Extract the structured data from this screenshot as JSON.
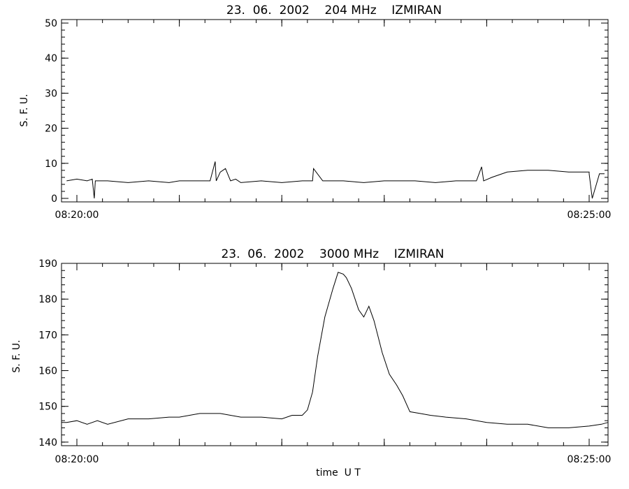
{
  "chart_data": [
    {
      "type": "line",
      "title": "23.  06.  2002    204 MHz    IZMIRAN",
      "xlabel": "",
      "ylabel": "S. F. U.",
      "x_start": "08:20:00",
      "x_end": "08:25:00",
      "x_tick_labels": [
        "08:20:00",
        "08:25:00"
      ],
      "ylim": [
        -1,
        51
      ],
      "yticks": [
        0,
        10,
        20,
        30,
        40,
        50
      ],
      "x_unit": "minutes after 08:20:00",
      "series": [
        {
          "x": [
            -0.1,
            0.0,
            0.1,
            0.15,
            0.17,
            0.18,
            0.3,
            0.5,
            0.7,
            0.9,
            1.0,
            1.1,
            1.2,
            1.3,
            1.35,
            1.36,
            1.4,
            1.45,
            1.5,
            1.55,
            1.6,
            1.8,
            2.0,
            2.2,
            2.3,
            2.31,
            2.4,
            2.6,
            2.8,
            3.0,
            3.2,
            3.3,
            3.5,
            3.7,
            3.9,
            3.95,
            3.97,
            4.05,
            4.2,
            4.4,
            4.6,
            4.8,
            5.0,
            5.0,
            5.03,
            5.1,
            5.15
          ],
          "y": [
            5,
            5.5,
            5,
            5.5,
            0,
            5,
            5,
            4.5,
            5,
            4.5,
            5,
            5,
            5,
            5,
            10.5,
            5,
            7.5,
            8.5,
            5,
            5.5,
            4.5,
            5,
            4.5,
            5,
            5,
            8.5,
            5,
            5,
            4.5,
            5,
            5,
            5,
            4.5,
            5,
            5,
            9,
            5,
            6,
            7.5,
            8,
            8,
            7.5,
            7.5,
            7,
            0,
            7,
            7
          ]
        }
      ]
    },
    {
      "type": "line",
      "title": "23.  06.  2002    3000 MHz    IZMIRAN",
      "xlabel": "time  U T",
      "ylabel": "S. F. U.",
      "x_start": "08:20:00",
      "x_end": "08:25:00",
      "x_tick_labels": [
        "08:20:00",
        "08:25:00"
      ],
      "ylim": [
        139,
        190
      ],
      "yticks": [
        140,
        150,
        160,
        170,
        180,
        190
      ],
      "x_unit": "minutes after 08:20:00",
      "series": [
        {
          "x": [
            -0.15,
            -0.1,
            0.0,
            0.1,
            0.2,
            0.3,
            0.5,
            0.7,
            0.9,
            1.0,
            1.2,
            1.4,
            1.6,
            1.8,
            2.0,
            2.1,
            2.2,
            2.25,
            2.3,
            2.35,
            2.42,
            2.5,
            2.55,
            2.6,
            2.63,
            2.68,
            2.75,
            2.8,
            2.85,
            2.9,
            2.98,
            3.05,
            3.12,
            3.18,
            3.25,
            3.35,
            3.45,
            3.6,
            3.8,
            4.0,
            4.2,
            4.4,
            4.6,
            4.8,
            5.0,
            5.12,
            5.2
          ],
          "y": [
            145.5,
            145.5,
            146,
            145,
            146,
            145,
            146.5,
            146.5,
            147,
            147,
            148,
            148,
            147,
            147,
            146.5,
            147.5,
            147.5,
            149,
            154,
            164,
            175,
            183,
            187.5,
            187,
            186,
            183,
            177,
            175,
            178,
            174,
            165,
            159,
            156,
            153,
            148.5,
            148,
            147.5,
            147,
            146.5,
            145.5,
            145,
            145,
            144,
            144,
            144.5,
            145,
            145.5
          ]
        }
      ]
    }
  ]
}
